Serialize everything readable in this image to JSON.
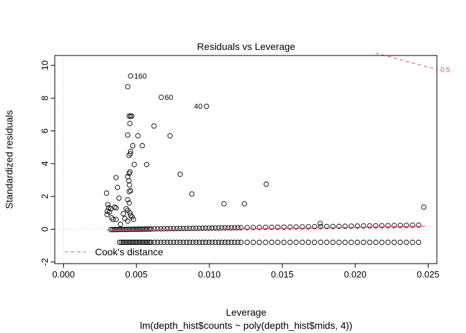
{
  "chart_data": {
    "type": "scatter",
    "title": "Residuals vs Leverage",
    "xlabel": "Leverage",
    "subtitle": "lm(depth_hist$counts ~ poly(depth_hist$mids, 4))",
    "ylabel": "Standardized residuals",
    "xlim": [
      -0.0006,
      0.0256
    ],
    "ylim": [
      -2.1,
      10.6
    ],
    "x_ticks": [
      0.0,
      0.005,
      0.01,
      0.015,
      0.02,
      0.025
    ],
    "x_tick_labels": [
      "0.000",
      "0.005",
      "0.010",
      "0.015",
      "0.020",
      "0.025"
    ],
    "y_ticks": [
      -2,
      0,
      2,
      4,
      6,
      8,
      10
    ],
    "y_tick_labels": [
      "-2",
      "0",
      "2",
      "4",
      "6",
      "8",
      "10"
    ],
    "colors": {
      "axis": "#000000",
      "reference": "#bebebe",
      "smooth": "#df536b",
      "cook": "#df536b"
    },
    "labeled_points": [
      {
        "label": "160",
        "x": 0.0046,
        "y": 9.35
      },
      {
        "label": "60",
        "x": 0.0067,
        "y": 8.05
      },
      {
        "label": "40",
        "x": 0.0098,
        "y": 7.5
      }
    ],
    "scattered_points": [
      [
        0.00295,
        2.2
      ],
      [
        0.00305,
        1.5
      ],
      [
        0.0031,
        1.3
      ],
      [
        0.003,
        1.1
      ],
      [
        0.00315,
        1.05
      ],
      [
        0.00298,
        0.9
      ],
      [
        0.00325,
        1.25
      ],
      [
        0.0033,
        0.7
      ],
      [
        0.0034,
        0.6
      ],
      [
        0.0036,
        0.6
      ],
      [
        0.0035,
        1.35
      ],
      [
        0.0036,
        1.3
      ],
      [
        0.0038,
        1.9
      ],
      [
        0.0037,
        2.55
      ],
      [
        0.0036,
        3.15
      ],
      [
        0.0039,
        0.3
      ],
      [
        0.0041,
        0.95
      ],
      [
        0.0042,
        0.65
      ],
      [
        0.0043,
        1.25
      ],
      [
        0.0044,
        1.8
      ],
      [
        0.0045,
        1.6
      ],
      [
        0.0044,
        1.15
      ],
      [
        0.00455,
        1.0
      ],
      [
        0.0046,
        0.85
      ],
      [
        0.0047,
        0.75
      ],
      [
        0.0048,
        0.6
      ],
      [
        0.0044,
        0.5
      ],
      [
        0.0045,
        2.3
      ],
      [
        0.0046,
        2.35
      ],
      [
        0.00452,
        2.7
      ],
      [
        0.00448,
        2.95
      ],
      [
        0.0045,
        3.4
      ],
      [
        0.00455,
        3.5
      ],
      [
        0.0044,
        3.2
      ],
      [
        0.00449,
        4.5
      ],
      [
        0.00458,
        4.6
      ],
      [
        0.0046,
        4.75
      ],
      [
        0.00475,
        5.1
      ],
      [
        0.00485,
        3.95
      ],
      [
        0.0044,
        5.75
      ],
      [
        0.00455,
        6.45
      ],
      [
        0.0046,
        6.9
      ],
      [
        0.0045,
        6.9
      ],
      [
        0.00468,
        6.9
      ],
      [
        0.0044,
        8.7
      ],
      [
        0.0051,
        5.7
      ],
      [
        0.0054,
        5.1
      ],
      [
        0.0057,
        3.95
      ],
      [
        0.0062,
        6.3
      ],
      [
        0.0073,
        5.7
      ],
      [
        0.008,
        3.35
      ],
      [
        0.0088,
        2.15
      ],
      [
        0.011,
        1.55
      ],
      [
        0.0124,
        1.55
      ],
      [
        0.0139,
        2.75
      ],
      [
        0.0176,
        0.35
      ],
      [
        0.0247,
        1.35
      ]
    ],
    "band_upper_y": [
      -0.02,
      0.25
    ],
    "band_lower_y": -0.8,
    "band_x_range": [
      0.00325,
      0.0246
    ],
    "smooth_line": [
      [
        0.003,
        -0.06
      ],
      [
        0.005,
        -0.06
      ],
      [
        0.01,
        -0.02
      ],
      [
        0.015,
        0.05
      ],
      [
        0.02,
        0.12
      ],
      [
        0.0248,
        0.18
      ]
    ],
    "cook_curve": {
      "level": "0.5",
      "points": [
        [
          0.0214,
          10.75
        ],
        [
          0.0256,
          9.75
        ]
      ]
    },
    "legend": {
      "label": "Cook's distance",
      "position": "bottom-left"
    }
  }
}
